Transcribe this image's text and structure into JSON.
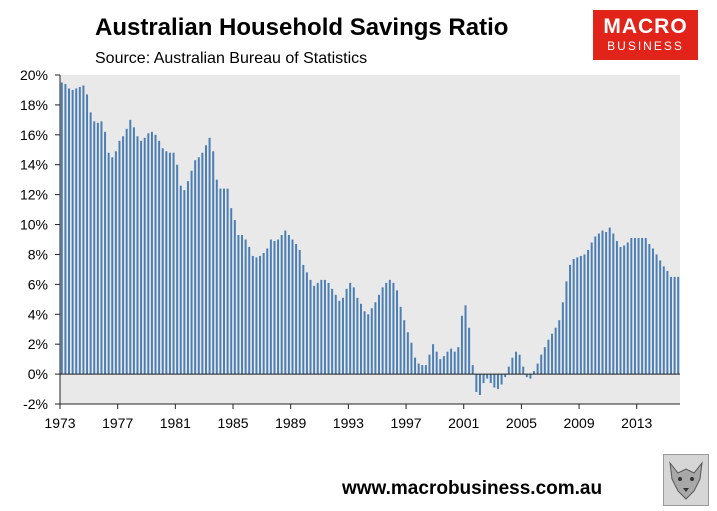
{
  "header": {
    "title": "Australian Household Savings Ratio",
    "subtitle": "Source: Australian Bureau of Statistics"
  },
  "logo": {
    "line1": "MACRO",
    "line2": "BUSINESS"
  },
  "footer": {
    "url": "www.macrobusiness.com.au"
  },
  "colors": {
    "bar": "#4a7eb4",
    "plot_bg": "#e9e9e9",
    "logo_bg": "#e2231a"
  },
  "chart_data": {
    "type": "bar",
    "title": "Australian Household Savings Ratio",
    "subtitle": "Source: Australian Bureau of Statistics",
    "ylim": [
      -2,
      20
    ],
    "yticks": [
      -2,
      0,
      2,
      4,
      6,
      8,
      10,
      12,
      14,
      16,
      18,
      20
    ],
    "y_tick_labels": [
      "-2%",
      "0%",
      "2%",
      "4%",
      "6%",
      "8%",
      "10%",
      "12%",
      "14%",
      "16%",
      "18%",
      "20%"
    ],
    "x_tick_labels": [
      "1973",
      "1977",
      "1981",
      "1985",
      "1989",
      "1993",
      "1997",
      "2001",
      "2005",
      "2009",
      "2013"
    ],
    "x_tick_every": 16,
    "frequency": "quarterly",
    "grid": false,
    "series": [
      {
        "values": [
          19.5,
          19.4,
          19.1,
          19.0,
          19.1,
          19.2,
          19.3,
          18.7,
          17.5,
          16.9,
          16.8,
          16.9,
          16.2,
          14.8,
          14.5,
          14.9,
          15.6,
          15.9,
          16.4,
          17.0,
          16.5,
          15.9,
          15.6,
          15.8,
          16.1,
          16.2,
          16.0,
          15.6,
          15.1,
          14.9,
          14.8,
          14.8,
          14.0,
          12.6,
          12.3,
          12.9,
          13.6,
          14.3,
          14.5,
          14.8,
          15.3,
          15.8,
          14.9,
          13.0,
          12.4,
          12.4,
          12.4,
          11.1,
          10.3,
          9.3,
          9.3,
          9.0,
          8.5,
          7.9,
          7.8,
          7.9,
          8.1,
          8.4,
          9.0,
          8.9,
          9.0,
          9.3,
          9.6,
          9.3,
          9.0,
          8.7,
          8.3,
          7.3,
          6.8,
          6.3,
          5.9,
          6.1,
          6.3,
          6.3,
          6.1,
          5.7,
          5.3,
          4.9,
          5.1,
          5.7,
          6.1,
          5.8,
          5.1,
          4.7,
          4.2,
          4.0,
          4.4,
          4.8,
          5.3,
          5.8,
          6.1,
          6.3,
          6.1,
          5.6,
          4.5,
          3.6,
          2.8,
          2.1,
          1.1,
          0.7,
          0.6,
          0.6,
          1.3,
          2.0,
          1.5,
          1.0,
          1.2,
          1.5,
          1.7,
          1.5,
          1.8,
          3.9,
          4.6,
          3.1,
          0.6,
          -1.2,
          -1.4,
          -0.6,
          -0.3,
          -0.6,
          -0.9,
          -1.0,
          -0.7,
          -0.2,
          0.5,
          1.1,
          1.5,
          1.3,
          0.5,
          -0.2,
          -0.3,
          0.2,
          0.7,
          1.3,
          1.8,
          2.3,
          2.7,
          3.1,
          3.6,
          4.8,
          6.2,
          7.3,
          7.7,
          7.8,
          7.9,
          8.0,
          8.3,
          8.8,
          9.2,
          9.4,
          9.6,
          9.5,
          9.8,
          9.4,
          8.9,
          8.5,
          8.6,
          8.8,
          9.1,
          9.1,
          9.1,
          9.1,
          9.1,
          8.7,
          8.4,
          8.0,
          7.6,
          7.2,
          6.9,
          6.5,
          6.5,
          6.5
        ]
      }
    ]
  }
}
